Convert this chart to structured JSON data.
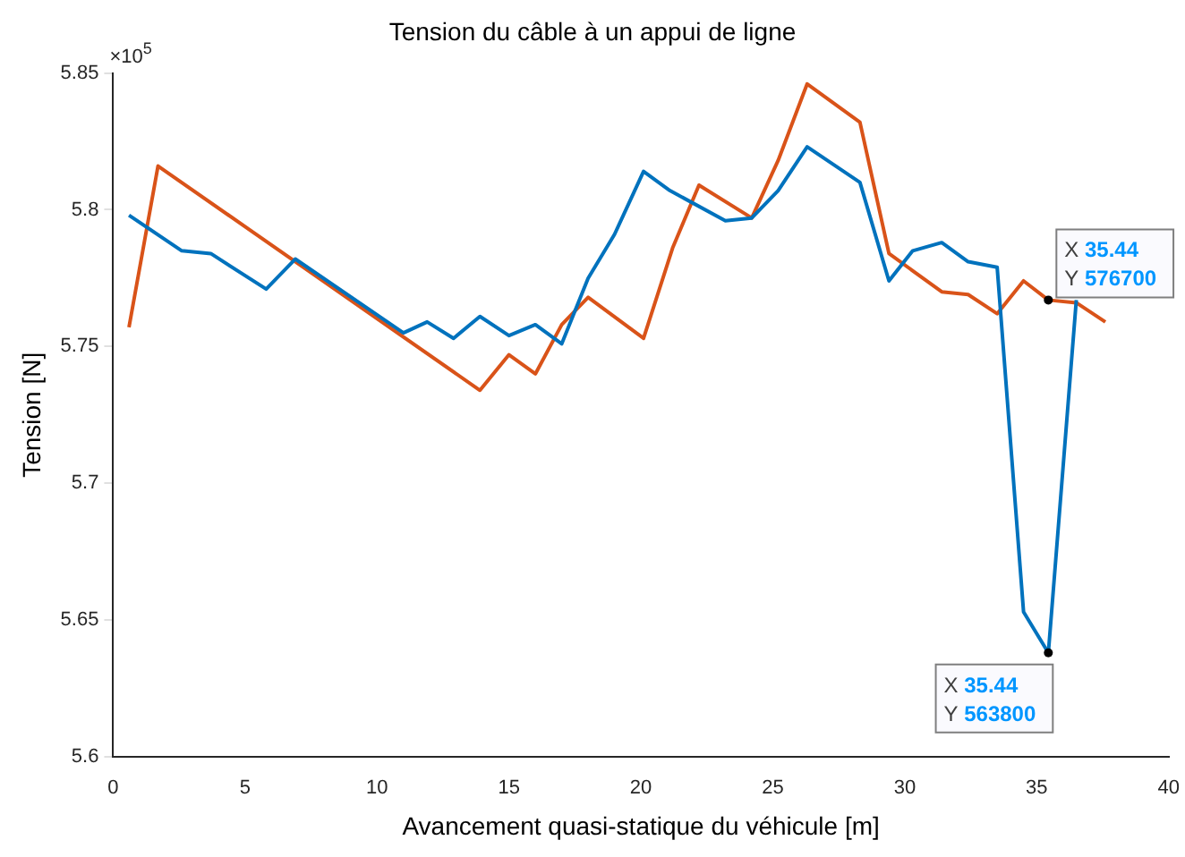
{
  "chart_data": {
    "type": "line",
    "title": "Tension du câble à un appui de ligne",
    "xlabel": "Avancement quasi-statique du véhicule [m]",
    "ylabel": "Tension [N]",
    "xlim": [
      0,
      40
    ],
    "xticks": [
      0,
      5,
      10,
      15,
      20,
      25,
      30,
      35,
      40
    ],
    "ylim": [
      5.6,
      5.85
    ],
    "yticks": [
      5.6,
      5.65,
      5.7,
      5.75,
      5.8,
      5.85
    ],
    "grid": false,
    "legend": false,
    "marker": "none",
    "line_style": "solid",
    "series": [
      {
        "color": "#0072bd",
        "x": [
          0.6,
          2.6,
          3.7,
          5.8,
          6.9,
          11.0,
          11.9,
          12.9,
          13.9,
          15.0,
          16.0,
          17.0,
          18.0,
          19.0,
          20.1,
          21.1,
          23.2,
          24.2,
          25.2,
          26.3,
          28.3,
          29.4,
          30.3,
          31.4,
          32.4,
          33.5,
          34.5,
          35.44,
          36.5
        ],
        "values": [
          5.798,
          5.785,
          5.784,
          5.771,
          5.782,
          5.755,
          5.759,
          5.753,
          5.761,
          5.754,
          5.758,
          5.751,
          5.775,
          5.791,
          5.814,
          5.807,
          5.796,
          5.797,
          5.807,
          5.823,
          5.81,
          5.774,
          5.785,
          5.788,
          5.781,
          5.779,
          5.653,
          5.638,
          5.767
        ]
      },
      {
        "color": "#d95319",
        "x": [
          0.6,
          1.7,
          13.9,
          15.0,
          16.0,
          17.0,
          18.0,
          20.1,
          21.2,
          22.2,
          24.2,
          25.2,
          26.3,
          28.3,
          29.4,
          31.4,
          32.4,
          33.5,
          34.5,
          35.44,
          36.5,
          37.6
        ],
        "values": [
          5.757,
          5.816,
          5.734,
          5.747,
          5.74,
          5.758,
          5.768,
          5.753,
          5.786,
          5.809,
          5.797,
          5.818,
          5.846,
          5.832,
          5.784,
          5.77,
          5.769,
          5.762,
          5.774,
          5.767,
          5.766,
          5.759
        ]
      }
    ],
    "annotations": [
      "×10$^{5}$",
      {
        "text": "X 35.44\nY 576700",
        "x": 35.44,
        "y": 5.767
      },
      {
        "text": "X 35.44\nY 563800",
        "x": 35.44,
        "y": 5.638
      }
    ]
  }
}
